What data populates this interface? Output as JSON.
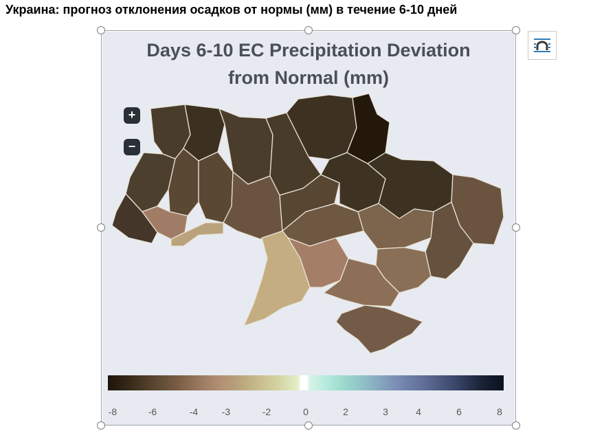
{
  "page_heading": "Украина: прогноз отклонения осадков от нормы (мм) в течение 6-10 дней",
  "card": {
    "title_line1": "Days 6-10 EC Precipitation Deviation",
    "title_line2": "from Normal (mm)",
    "zoom_in": "+",
    "zoom_out": "−"
  },
  "legend": {
    "ticks": [
      "-8",
      "-6",
      "-4",
      "-3",
      "-2",
      "0",
      "2",
      "3",
      "4",
      "6",
      "8"
    ]
  },
  "colors": {
    "card_bg": "#e7ebf1",
    "title": "#4b4f56",
    "darkest": "#23180a",
    "dark": "#3e3322",
    "mid_dark": "#4d3f2d",
    "brown": "#6a5440",
    "light_brown": "#a07c66",
    "tan": "#b9a27c",
    "khaki": "#c4ad82"
  },
  "icons": [
    "zoom-in-icon",
    "zoom-out-icon",
    "layout-options-icon"
  ]
}
